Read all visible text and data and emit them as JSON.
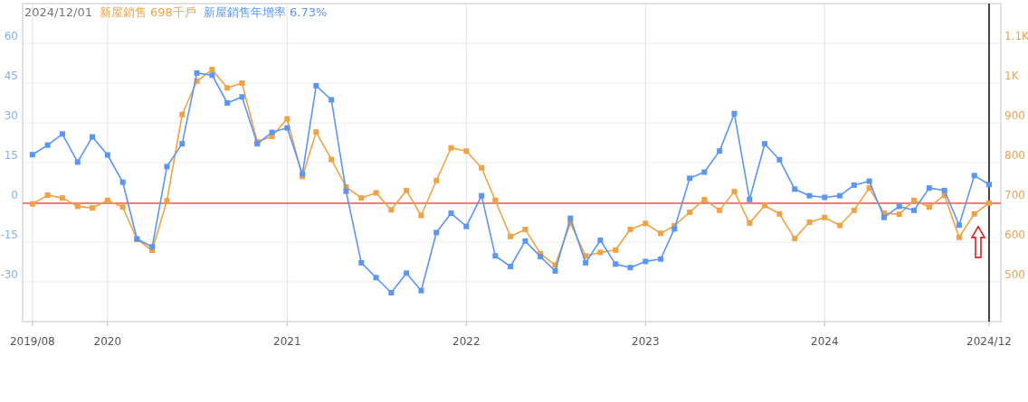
{
  "chart_data": {
    "type": "line",
    "title": "2024/12/01",
    "x": [
      "2019-08",
      "2019-09",
      "2019-10",
      "2019-11",
      "2019-12",
      "2020-01",
      "2020-02",
      "2020-03",
      "2020-04",
      "2020-05",
      "2020-06",
      "2020-07",
      "2020-08",
      "2020-09",
      "2020-10",
      "2020-11",
      "2020-12",
      "2021-01",
      "2021-02",
      "2021-03",
      "2021-04",
      "2021-05",
      "2021-06",
      "2021-07",
      "2021-08",
      "2021-09",
      "2021-10",
      "2021-11",
      "2021-12",
      "2022-01",
      "2022-02",
      "2022-03",
      "2022-04",
      "2022-05",
      "2022-06",
      "2022-07",
      "2022-08",
      "2022-09",
      "2022-10",
      "2022-11",
      "2022-12",
      "2023-01",
      "2023-02",
      "2023-03",
      "2023-04",
      "2023-05",
      "2023-06",
      "2023-07",
      "2023-08",
      "2023-09",
      "2023-10",
      "2023-11",
      "2023-12",
      "2024-01",
      "2024-02",
      "2024-03",
      "2024-04",
      "2024-05",
      "2024-06",
      "2024-07",
      "2024-08",
      "2024-09",
      "2024-10",
      "2024-11",
      "2024-12"
    ],
    "series": [
      {
        "name": "新屋銷售 698千戶",
        "color": "#f0a245",
        "axis": "y2",
        "values": [
          696,
          718,
          711,
          690,
          686,
          705,
          688,
          607,
          579,
          704,
          921,
          1005,
          1034,
          988,
          1000,
          852,
          866,
          910,
          765,
          877,
          808,
          739,
          711,
          724,
          681,
          730,
          667,
          755,
          837,
          829,
          787,
          705,
          614,
          632,
          571,
          542,
          648,
          565,
          574,
          580,
          632,
          647,
          622,
          641,
          675,
          707,
          680,
          727,
          648,
          692,
          671,
          609,
          650,
          662,
          642,
          680,
          736,
          673,
          670,
          705,
          688,
          718,
          612,
          671,
          698
        ]
      },
      {
        "name": "新屋銷售年增率 6.73%",
        "color": "#5b97f2",
        "axis": "y",
        "values": [
          18,
          21.6,
          25.8,
          15.2,
          24.7,
          17.9,
          7.6,
          -13.8,
          -16.8,
          13.5,
          22.1,
          48.8,
          48,
          37.5,
          39.8,
          22.1,
          26.4,
          28.1,
          10.7,
          44,
          38.7,
          4.2,
          -22.8,
          -28.4,
          -34.1,
          -26.7,
          -33.3,
          -11.4,
          -4.1,
          -9.1,
          2.5,
          -20.2,
          -24.2,
          -14.6,
          -20.5,
          -25.9,
          -6,
          -22.8,
          -14.3,
          -23.3,
          -24.6,
          -22.3,
          -21.4,
          -10,
          9.1,
          11.4,
          19.4,
          33.5,
          1.1,
          22.1,
          16.1,
          5,
          2.5,
          1.9,
          2.5,
          6.5,
          8,
          -5.7,
          -1.5,
          -3,
          5.4,
          4.5,
          -8.6,
          10.1,
          6.73
        ]
      }
    ],
    "xlim": [
      "2019-07-12",
      "2024-12-25"
    ],
    "xticks": [
      {
        "value": "2019-08",
        "label": "2019/08"
      },
      {
        "value": "2020-01",
        "label": "2020"
      },
      {
        "value": "2021-01",
        "label": "2021"
      },
      {
        "value": "2022-01",
        "label": "2022"
      },
      {
        "value": "2023-01",
        "label": "2023"
      },
      {
        "value": "2024-01",
        "label": "2024"
      },
      {
        "value": "2024-12",
        "label": "2024/12"
      }
    ],
    "ylim": [
      -45,
      75
    ],
    "yticks": [
      -30,
      -15,
      0,
      15,
      30,
      45,
      60
    ],
    "y2lim": [
      400,
      1200
    ],
    "y2ticks": [
      500,
      600,
      700,
      800,
      900,
      {
        "value": 1000,
        "label": "1K"
      },
      {
        "value": 1100,
        "label": "1.1K"
      }
    ],
    "ref_lines": [
      {
        "axis": "y2",
        "value": 698,
        "color": "#ff5050"
      },
      {
        "axis": "x",
        "value": "2024-12",
        "color": "#444444"
      }
    ],
    "grid": true,
    "marker": "square",
    "line_style": "solid"
  }
}
